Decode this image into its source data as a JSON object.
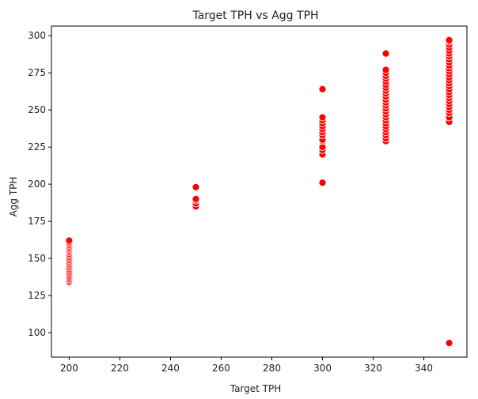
{
  "chart_data": {
    "type": "scatter",
    "title": "Target TPH vs Agg TPH",
    "xlabel": "Target TPH",
    "ylabel": "Agg TPH",
    "xlim": [
      193,
      357
    ],
    "ylim": [
      83.5,
      306.5
    ],
    "xticks": [
      200,
      220,
      240,
      260,
      280,
      300,
      320,
      340
    ],
    "yticks": [
      100,
      125,
      150,
      175,
      200,
      225,
      250,
      275,
      300
    ],
    "grid": false,
    "legend": "none",
    "marker_color": "#ff0000",
    "marker_edge_color": "#ffffff",
    "points": [
      {
        "x": 200,
        "y": 134
      },
      {
        "x": 200,
        "y": 135
      },
      {
        "x": 200,
        "y": 136
      },
      {
        "x": 200,
        "y": 137
      },
      {
        "x": 200,
        "y": 138
      },
      {
        "x": 200,
        "y": 139
      },
      {
        "x": 200,
        "y": 140
      },
      {
        "x": 200,
        "y": 141
      },
      {
        "x": 200,
        "y": 142
      },
      {
        "x": 200,
        "y": 143
      },
      {
        "x": 200,
        "y": 144
      },
      {
        "x": 200,
        "y": 145
      },
      {
        "x": 200,
        "y": 146
      },
      {
        "x": 200,
        "y": 147
      },
      {
        "x": 200,
        "y": 148
      },
      {
        "x": 200,
        "y": 149
      },
      {
        "x": 200,
        "y": 150
      },
      {
        "x": 200,
        "y": 151
      },
      {
        "x": 200,
        "y": 152
      },
      {
        "x": 200,
        "y": 153
      },
      {
        "x": 200,
        "y": 154
      },
      {
        "x": 200,
        "y": 155
      },
      {
        "x": 200,
        "y": 156
      },
      {
        "x": 200,
        "y": 157
      },
      {
        "x": 200,
        "y": 158
      },
      {
        "x": 200,
        "y": 159
      },
      {
        "x": 200,
        "y": 160
      },
      {
        "x": 200,
        "y": 161
      },
      {
        "x": 200,
        "y": 162
      },
      {
        "x": 250,
        "y": 185
      },
      {
        "x": 250,
        "y": 187
      },
      {
        "x": 250,
        "y": 189
      },
      {
        "x": 250,
        "y": 190
      },
      {
        "x": 250,
        "y": 198
      },
      {
        "x": 300,
        "y": 201
      },
      {
        "x": 300,
        "y": 220
      },
      {
        "x": 300,
        "y": 223
      },
      {
        "x": 300,
        "y": 225
      },
      {
        "x": 300,
        "y": 229
      },
      {
        "x": 300,
        "y": 230
      },
      {
        "x": 300,
        "y": 233
      },
      {
        "x": 300,
        "y": 235
      },
      {
        "x": 300,
        "y": 237
      },
      {
        "x": 300,
        "y": 239
      },
      {
        "x": 300,
        "y": 241
      },
      {
        "x": 300,
        "y": 243
      },
      {
        "x": 300,
        "y": 245
      },
      {
        "x": 300,
        "y": 264
      },
      {
        "x": 325,
        "y": 229
      },
      {
        "x": 325,
        "y": 231
      },
      {
        "x": 325,
        "y": 233
      },
      {
        "x": 325,
        "y": 235
      },
      {
        "x": 325,
        "y": 237
      },
      {
        "x": 325,
        "y": 239
      },
      {
        "x": 325,
        "y": 241
      },
      {
        "x": 325,
        "y": 243
      },
      {
        "x": 325,
        "y": 245
      },
      {
        "x": 325,
        "y": 247
      },
      {
        "x": 325,
        "y": 249
      },
      {
        "x": 325,
        "y": 251
      },
      {
        "x": 325,
        "y": 253
      },
      {
        "x": 325,
        "y": 255
      },
      {
        "x": 325,
        "y": 257
      },
      {
        "x": 325,
        "y": 259
      },
      {
        "x": 325,
        "y": 261
      },
      {
        "x": 325,
        "y": 263
      },
      {
        "x": 325,
        "y": 265
      },
      {
        "x": 325,
        "y": 267
      },
      {
        "x": 325,
        "y": 269
      },
      {
        "x": 325,
        "y": 271
      },
      {
        "x": 325,
        "y": 273
      },
      {
        "x": 325,
        "y": 275
      },
      {
        "x": 325,
        "y": 277
      },
      {
        "x": 325,
        "y": 288
      },
      {
        "x": 350,
        "y": 93
      },
      {
        "x": 350,
        "y": 242
      },
      {
        "x": 350,
        "y": 245
      },
      {
        "x": 350,
        "y": 248
      },
      {
        "x": 350,
        "y": 250
      },
      {
        "x": 350,
        "y": 252
      },
      {
        "x": 350,
        "y": 254
      },
      {
        "x": 350,
        "y": 256
      },
      {
        "x": 350,
        "y": 258
      },
      {
        "x": 350,
        "y": 260
      },
      {
        "x": 350,
        "y": 262
      },
      {
        "x": 350,
        "y": 264
      },
      {
        "x": 350,
        "y": 266
      },
      {
        "x": 350,
        "y": 268
      },
      {
        "x": 350,
        "y": 270
      },
      {
        "x": 350,
        "y": 272
      },
      {
        "x": 350,
        "y": 274
      },
      {
        "x": 350,
        "y": 276
      },
      {
        "x": 350,
        "y": 278
      },
      {
        "x": 350,
        "y": 280
      },
      {
        "x": 350,
        "y": 282
      },
      {
        "x": 350,
        "y": 284
      },
      {
        "x": 350,
        "y": 286
      },
      {
        "x": 350,
        "y": 288
      },
      {
        "x": 350,
        "y": 290
      },
      {
        "x": 350,
        "y": 292
      },
      {
        "x": 350,
        "y": 294
      },
      {
        "x": 350,
        "y": 296
      },
      {
        "x": 350,
        "y": 297
      }
    ]
  }
}
